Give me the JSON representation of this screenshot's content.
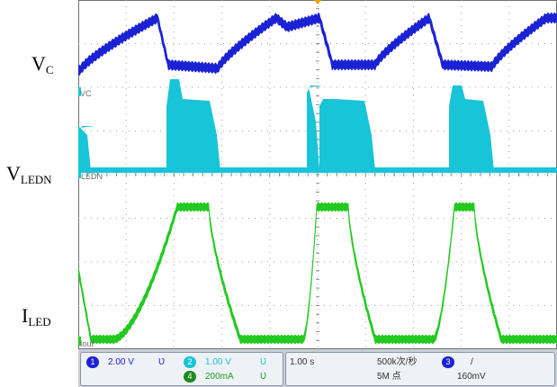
{
  "labels": {
    "vc_base": "V",
    "vc_sub": "C",
    "vledn_base": "V",
    "vledn_sub": "LEDN",
    "iled_base": "I",
    "iled_sub": "LED"
  },
  "trace_tags": {
    "vc": "VC",
    "ledn": "LEDN",
    "iout": "Iout"
  },
  "status": {
    "ch1": {
      "num": "1",
      "scale": "2.00 V",
      "coupling": "Ʋ"
    },
    "ch2": {
      "num": "2",
      "scale": "1.00 V",
      "coupling": "Ʋ"
    },
    "ch4": {
      "num": "4",
      "scale": "200mA",
      "coupling": "Ʋ"
    },
    "timebase": "1.00 s",
    "sample_rate": "500k次/秒",
    "record_length": "5M 点",
    "trigger_source": "3",
    "trigger_slope": "/",
    "trigger_level": "160mV"
  },
  "colors": {
    "ch1": "#1b22d4",
    "ch2": "#18c4d8",
    "ch4": "#22c91f",
    "grid": "#9aa0aa",
    "statusbar": "#c9cfd8",
    "trigger_marker": "#f2a100"
  }
}
